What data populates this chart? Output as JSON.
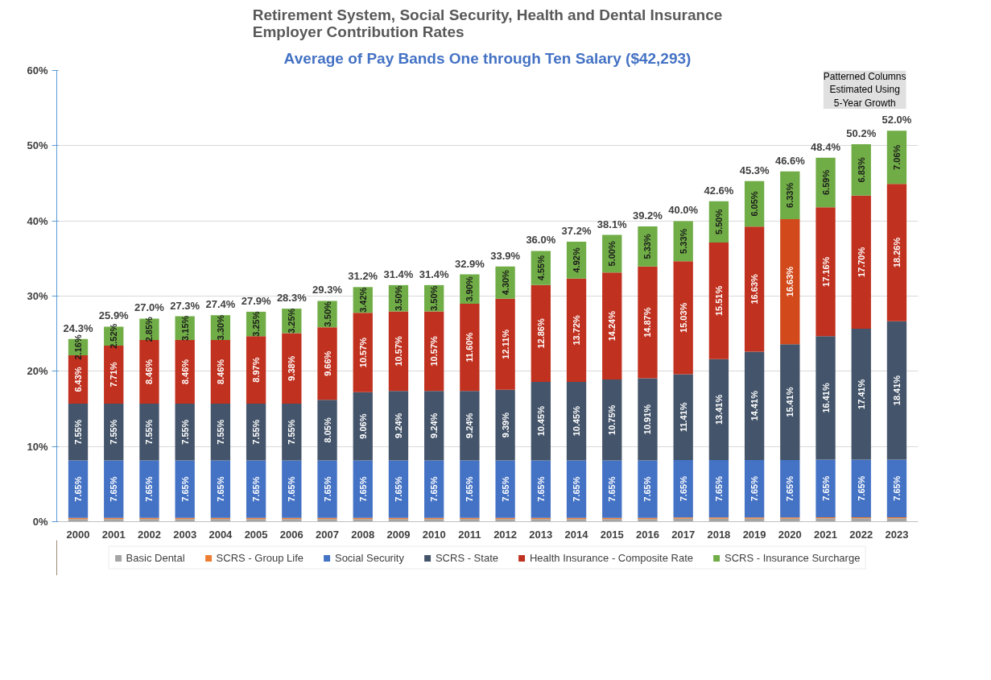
{
  "chart_data": {
    "type": "bar",
    "stacked": true,
    "title": "Retirement System, Social Security, Health and Dental Insurance\nEmployer Contribution Rates",
    "subtitle": "Average of Pay Bands One through Ten Salary ($42,293)",
    "annotations": [
      "Patterned Columns\nEstimated Using\n5-Year Growth"
    ],
    "categories": [
      "2000",
      "2001",
      "2002",
      "2003",
      "2004",
      "2005",
      "2006",
      "2007",
      "2008",
      "2009",
      "2010",
      "2011",
      "2012",
      "2013",
      "2014",
      "2015",
      "2016",
      "2017",
      "2018",
      "2019",
      "2020",
      "2021",
      "2022",
      "2023"
    ],
    "ylim": [
      0,
      60
    ],
    "yticks": [
      {
        "value": 0,
        "label": "0%"
      },
      {
        "value": 10,
        "label": "10%"
      },
      {
        "value": 20,
        "label": "20%"
      },
      {
        "value": 30,
        "label": "30%"
      },
      {
        "value": 40,
        "label": "40%"
      },
      {
        "value": 50,
        "label": "50%"
      },
      {
        "value": 60,
        "label": "60%"
      }
    ],
    "grid": "y",
    "legend": "bottom",
    "series": [
      {
        "name": "Basic Dental",
        "color": "#a5a5a5",
        "values": [
          0.35,
          0.35,
          0.35,
          0.35,
          0.35,
          0.35,
          0.35,
          0.35,
          0.35,
          0.35,
          0.35,
          0.35,
          0.35,
          0.35,
          0.35,
          0.35,
          0.35,
          0.4,
          0.4,
          0.4,
          0.4,
          0.45,
          0.45,
          0.45
        ]
      },
      {
        "name": "SCRS - Group Life",
        "color": "#ed7d31",
        "values": [
          0.15,
          0.15,
          0.15,
          0.15,
          0.15,
          0.15,
          0.15,
          0.15,
          0.15,
          0.15,
          0.15,
          0.15,
          0.15,
          0.15,
          0.15,
          0.15,
          0.15,
          0.15,
          0.15,
          0.15,
          0.15,
          0.15,
          0.15,
          0.15
        ]
      },
      {
        "name": "Social Security",
        "color": "#4472c4",
        "values": [
          7.65,
          7.65,
          7.65,
          7.65,
          7.65,
          7.65,
          7.65,
          7.65,
          7.65,
          7.65,
          7.65,
          7.65,
          7.65,
          7.65,
          7.65,
          7.65,
          7.65,
          7.65,
          7.65,
          7.65,
          7.65,
          7.65,
          7.65,
          7.65
        ],
        "value_labels": [
          "7.65%",
          "7.65%",
          "7.65%",
          "7.65%",
          "7.65%",
          "7.65%",
          "7.65%",
          "7.65%",
          "7.65%",
          "7.65%",
          "7.65%",
          "7.65%",
          "7.65%",
          "7.65%",
          "7.65%",
          "7.65%",
          "7.65%",
          "7.65%",
          "7.65%",
          "7.65%",
          "7.65%",
          "7.65%",
          "7.65%",
          "7.65%"
        ]
      },
      {
        "name": "SCRS - State",
        "color": "#44546a",
        "values": [
          7.55,
          7.55,
          7.55,
          7.55,
          7.55,
          7.55,
          7.55,
          8.05,
          9.06,
          9.24,
          9.24,
          9.24,
          9.39,
          10.45,
          10.45,
          10.75,
          10.91,
          11.41,
          13.41,
          14.41,
          15.41,
          16.41,
          17.41,
          18.41
        ],
        "value_labels": [
          "7.55%",
          "7.55%",
          "7.55%",
          "7.55%",
          "7.55%",
          "7.55%",
          "7.55%",
          "8.05%",
          "9.06%",
          "9.24%",
          "9.24%",
          "9.24%",
          "9.39%",
          "10.45%",
          "10.45%",
          "10.75%",
          "10.91%",
          "11.41%",
          "13.41%",
          "14.41%",
          "15.41%",
          "16.41%",
          "17.41%",
          "18.41%"
        ]
      },
      {
        "name": "Health Insurance - Composite Rate",
        "color": "#c0311f",
        "colors": [
          "#c0311f",
          "#c0311f",
          "#c0311f",
          "#c0311f",
          "#c0311f",
          "#c0311f",
          "#c0311f",
          "#c0311f",
          "#c0311f",
          "#c0311f",
          "#c0311f",
          "#c0311f",
          "#c0311f",
          "#c0311f",
          "#c0311f",
          "#c0311f",
          "#c0311f",
          "#c0311f",
          "#c0311f",
          "#c0311f",
          "#d24a1c",
          "#c0311f",
          "#c0311f",
          "#c0311f"
        ],
        "values": [
          6.43,
          7.71,
          8.46,
          8.46,
          8.46,
          8.97,
          9.38,
          9.66,
          10.57,
          10.57,
          10.57,
          11.6,
          12.11,
          12.86,
          13.72,
          14.24,
          14.87,
          15.03,
          15.51,
          16.63,
          16.63,
          17.16,
          17.7,
          18.26
        ],
        "value_labels": [
          "6.43%",
          "7.71%",
          "8.46%",
          "8.46%",
          "8.46%",
          "8.97%",
          "9.38%",
          "9.66%",
          "10.57%",
          "10.57%",
          "10.57%",
          "11.60%",
          "12.11%",
          "12.86%",
          "13.72%",
          "14.24%",
          "14.87%",
          "15.03%",
          "15.51%",
          "16.63%",
          "16.63%",
          "17.16%",
          "17.70%",
          "18.26%"
        ]
      },
      {
        "name": "SCRS - Insurance Surcharge",
        "color": "#70ad47",
        "values": [
          2.16,
          2.52,
          2.85,
          3.15,
          3.3,
          3.25,
          3.25,
          3.5,
          3.42,
          3.5,
          3.5,
          3.9,
          4.3,
          4.55,
          4.92,
          5.0,
          5.33,
          5.33,
          5.5,
          6.05,
          6.33,
          6.59,
          6.83,
          7.06
        ],
        "value_labels": [
          "2.16%",
          "2.52%",
          "2.85%",
          "3.15%",
          "3.30%",
          "3.25%",
          "3.25%",
          "3.50%",
          "3.42%",
          "3.50%",
          "3.50%",
          "3.90%",
          "4.30%",
          "4.55%",
          "4.92%",
          "5.00%",
          "5.33%",
          "5.33%",
          "5.50%",
          "6.05%",
          "6.33%",
          "6.59%",
          "6.83%",
          "7.06%"
        ]
      }
    ],
    "totals": [
      "24.3%",
      "25.9%",
      "27.0%",
      "27.3%",
      "27.4%",
      "27.9%",
      "28.3%",
      "29.3%",
      "31.2%",
      "31.4%",
      "31.4%",
      "32.9%",
      "33.9%",
      "36.0%",
      "37.2%",
      "38.1%",
      "39.2%",
      "40.0%",
      "42.6%",
      "45.3%",
      "46.6%",
      "48.4%",
      "50.2%",
      "52.0%"
    ]
  }
}
